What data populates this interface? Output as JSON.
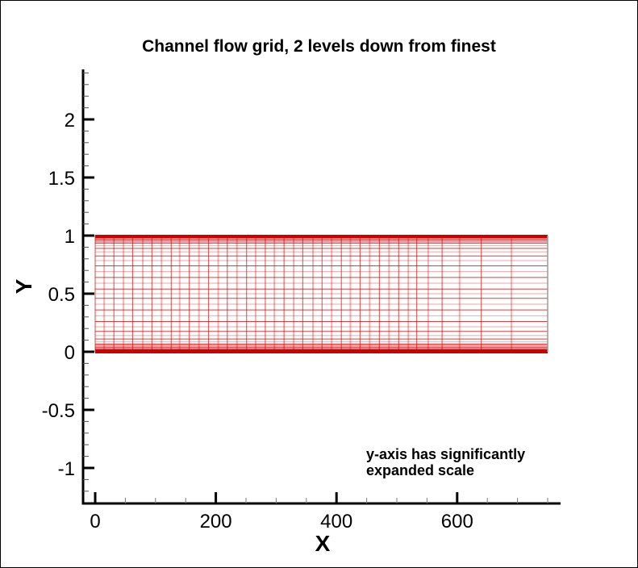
{
  "chart_data": {
    "type": "mesh",
    "title": "Channel flow grid, 2 levels down from finest",
    "xlabel": "X",
    "ylabel": "Y",
    "xlim": [
      -20,
      770
    ],
    "ylim": [
      -1.3,
      2.4
    ],
    "x_ticks": [
      0,
      200,
      400,
      600
    ],
    "x_tick_labels": [
      "0",
      "200",
      "400",
      "600"
    ],
    "x_minor_step": 50,
    "y_ticks": [
      -1,
      -0.5,
      0,
      0.5,
      1,
      1.5,
      2
    ],
    "y_tick_labels": [
      "-1",
      "-0.5",
      "0",
      "0.5",
      "1",
      "1.5",
      "2"
    ],
    "y_minor_step": 0.1,
    "grid_on": false,
    "legend": null,
    "annotation": "y-axis has significantly\nexpanded scale",
    "mesh_color": "#cc0000",
    "mesh_x_extent": [
      0,
      750
    ],
    "mesh_y_extent": [
      0,
      1
    ],
    "mesh_x_lines": [
      0,
      15,
      31,
      47,
      62,
      79,
      94,
      110,
      126,
      140,
      156,
      172,
      188,
      204,
      219,
      235,
      251,
      266,
      282,
      297,
      313,
      329,
      344,
      361,
      376,
      392,
      408,
      423,
      439,
      455,
      471,
      487,
      503,
      519,
      533,
      552,
      575,
      604,
      640,
      690,
      750
    ],
    "mesh_y_lines": [
      0,
      0.003,
      0.007,
      0.012,
      0.018,
      0.026,
      0.036,
      0.049,
      0.065,
      0.085,
      0.11,
      0.14,
      0.175,
      0.215,
      0.26,
      0.31,
      0.36,
      0.41,
      0.46,
      0.5,
      0.54,
      0.59,
      0.64,
      0.69,
      0.74,
      0.785,
      0.825,
      0.86,
      0.89,
      0.915,
      0.935,
      0.951,
      0.964,
      0.974,
      0.982,
      0.988,
      0.993,
      0.997,
      1.0
    ]
  },
  "annotation": {
    "text": "y-axis has significantly\nexpanded scale"
  },
  "title": "Channel flow grid, 2 levels down from finest"
}
